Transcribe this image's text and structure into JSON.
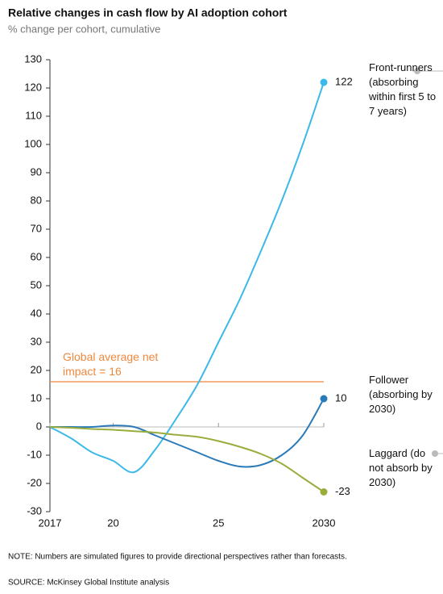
{
  "chart_data": {
    "type": "line",
    "title": "Relative changes in cash flow by AI adoption cohort",
    "subtitle": "% change per cohort, cumulative",
    "x": [
      2017,
      2018,
      2019,
      2020,
      2021,
      2022,
      2023,
      2024,
      2025,
      2026,
      2027,
      2028,
      2029,
      2030
    ],
    "xlim": [
      2017,
      2030
    ],
    "xticks": [
      2017,
      {
        "value": 2020,
        "label": "20"
      },
      {
        "value": 2025,
        "label": "25"
      },
      2030
    ],
    "ylim": [
      -30,
      130
    ],
    "yticks": [
      -30,
      -20,
      -10,
      0,
      10,
      20,
      30,
      40,
      50,
      60,
      70,
      80,
      90,
      100,
      110,
      120,
      130
    ],
    "series": [
      {
        "name": "Front-runners (absorbing within first 5 to 7 years)",
        "color": "#3cb9e8",
        "values": [
          0,
          -4,
          -9,
          -12,
          -16,
          -8,
          3,
          15,
          30,
          45,
          62,
          80,
          100,
          122
        ]
      },
      {
        "name": "Follower (absorbing by 2030)",
        "color": "#2a7ab8",
        "values": [
          0,
          0,
          0,
          0.5,
          0,
          -3,
          -6,
          -9,
          -12,
          -14,
          -13.5,
          -10,
          -3,
          10
        ]
      },
      {
        "name": "Laggard (do not absorb by 2030)",
        "color": "#9aad3c",
        "values": [
          0,
          -0.3,
          -0.7,
          -1,
          -1.5,
          -2,
          -2.8,
          -3.5,
          -5,
          -7,
          -9.5,
          -13,
          -18,
          -23
        ]
      }
    ],
    "reference_line": {
      "value": 16,
      "label": "Global average net impact = 16",
      "color": "#f0883e"
    },
    "note": "NOTE: Numbers are simulated figures to provide directional perspectives rather than forecasts.",
    "source": "SOURCE:  McKinsey Global Institute analysis"
  }
}
